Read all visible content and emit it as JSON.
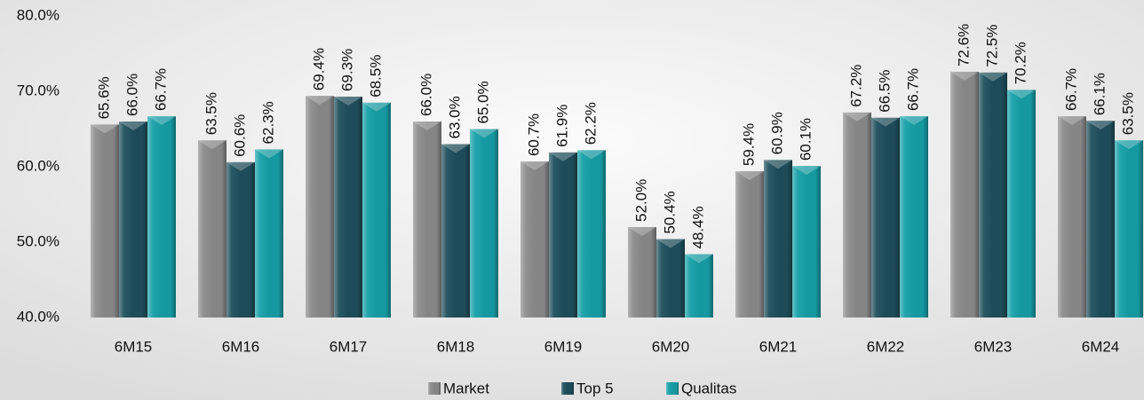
{
  "chart_data": {
    "type": "bar",
    "categories": [
      "6M15",
      "6M16",
      "6M17",
      "6M18",
      "6M19",
      "6M20",
      "6M21",
      "6M22",
      "6M23",
      "6M24"
    ],
    "series": [
      {
        "name": "Market",
        "color": "#8c8c8c",
        "values": [
          65.6,
          63.5,
          69.4,
          66.0,
          60.7,
          52.0,
          59.4,
          67.2,
          72.6,
          66.7
        ],
        "value_labels": [
          "65.6%",
          "63.5%",
          "69.4%",
          "66.0%",
          "60.7%",
          "52.0%",
          "59.4%",
          "67.2%",
          "72.6%",
          "66.7%"
        ]
      },
      {
        "name": "Top 5",
        "color": "#1f4f5c",
        "values": [
          66.0,
          60.6,
          69.3,
          63.0,
          61.9,
          50.4,
          60.9,
          66.5,
          72.5,
          66.1
        ],
        "value_labels": [
          "66.0%",
          "60.6%",
          "69.3%",
          "63.0%",
          "61.9%",
          "50.4%",
          "60.9%",
          "66.5%",
          "72.5%",
          "66.1%"
        ]
      },
      {
        "name": "Qualitas",
        "color": "#17a0a8",
        "values": [
          66.7,
          62.3,
          68.5,
          65.0,
          62.2,
          48.4,
          60.1,
          66.7,
          70.2,
          63.5
        ],
        "value_labels": [
          "66.7%",
          "62.3%",
          "68.5%",
          "65.0%",
          "62.2%",
          "48.4%",
          "60.1%",
          "66.7%",
          "70.2%",
          "63.5%"
        ]
      }
    ],
    "ylim": [
      40,
      80
    ],
    "yticks": [
      {
        "value": 40,
        "label": "40.0%"
      },
      {
        "value": 50,
        "label": "50.0%"
      },
      {
        "value": 60,
        "label": "60.0%"
      },
      {
        "value": 70,
        "label": "70.0%"
      },
      {
        "value": 80,
        "label": "80.0%"
      }
    ],
    "grid": false,
    "legend": "bottom"
  }
}
